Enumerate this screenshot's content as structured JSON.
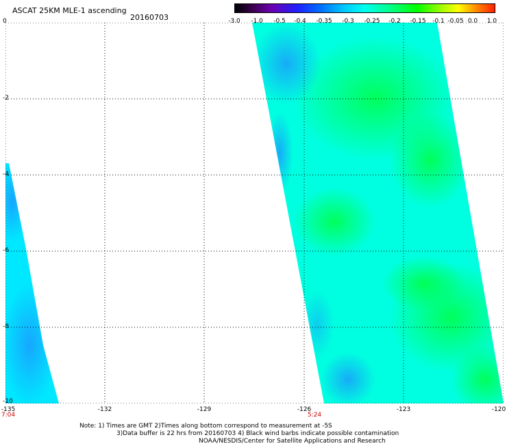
{
  "header": {
    "title": "ASCAT 25KM MLE-1 ascending",
    "date": "20160703"
  },
  "colorbar": {
    "labels": [
      "-3.0",
      "-1.0",
      "-0.5",
      "-0.4",
      "-0.35",
      "-0.3",
      "-0.25",
      "-0.2",
      "-0.15",
      "-0.1",
      "-0.05",
      "0.0",
      "1.0"
    ]
  },
  "axes": {
    "y_ticks": [
      "0",
      "-2",
      "-4",
      "-6",
      "-8",
      "-10"
    ],
    "x_ticks": [
      "-135",
      "-132",
      "-129",
      "-126",
      "-123",
      "-120"
    ]
  },
  "swath_times": [
    "7:04",
    "5:24"
  ],
  "notes": {
    "line1": "Note: 1) Times are GMT 2)Times along bottom correspond to measurement at -5S",
    "line2": "3)Data buffer is 22 hrs from 20160703 4) Black wind barbs indicate possible contamination",
    "line3": "NOAA/NESDIS/Center for Satellite Applications and Research"
  },
  "colors": {
    "swath_main": "#00ffee",
    "swath_strong": "#00ff44",
    "swath_weak": "#22aaff",
    "time_text": "#cc0000"
  }
}
